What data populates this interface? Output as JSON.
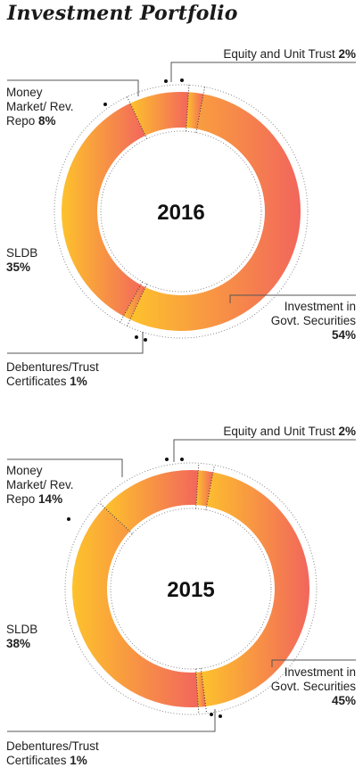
{
  "title": "Investment Portfolio",
  "chart_data": [
    {
      "type": "pie",
      "style": "donut",
      "center_label": "2016",
      "categories": [
        "Equity and Unit Trust",
        "Investment in Govt. Securities",
        "Debentures/Trust Certificates",
        "SLDB",
        "Money Market/ Rev. Repo"
      ],
      "values": [
        2,
        54,
        1,
        35,
        8
      ],
      "value_labels": [
        "2%",
        "54%",
        "1%",
        "35%",
        "8%"
      ],
      "labels": {
        "equity": {
          "line1": "Equity and Unit Trust",
          "line2": "",
          "line3": "",
          "value": "2%"
        },
        "govt": {
          "line1": "Investment in",
          "line2": "Govt. Securities",
          "line3": "",
          "value": "54%"
        },
        "debentures": {
          "line1": "Debentures/Trust",
          "line2": "Certificates",
          "line3": "",
          "value": "1%"
        },
        "sldb": {
          "line1": "SLDB",
          "line2": "",
          "line3": "",
          "value": "35%"
        },
        "money": {
          "line1": "Money",
          "line2": "Market/ Rev.",
          "line3": "Repo",
          "value": "8%"
        }
      },
      "colors": {
        "gradient_left": "#FDC22C",
        "gradient_right": "#F2665C"
      }
    },
    {
      "type": "pie",
      "style": "donut",
      "center_label": "2015",
      "categories": [
        "Equity and Unit Trust",
        "Investment in Govt. Securities",
        "Debentures/Trust Certificates",
        "SLDB",
        "Money Market/ Rev. Repo"
      ],
      "values": [
        2,
        45,
        1,
        38,
        14
      ],
      "value_labels": [
        "2%",
        "45%",
        "1%",
        "38%",
        "14%"
      ],
      "labels": {
        "equity": {
          "line1": "Equity and Unit Trust",
          "line2": "",
          "line3": "",
          "value": "2%"
        },
        "govt": {
          "line1": "Investment in",
          "line2": "Govt. Securities",
          "line3": "",
          "value": "45%"
        },
        "debentures": {
          "line1": "Debentures/Trust",
          "line2": "Certificates",
          "line3": "",
          "value": "1%"
        },
        "sldb": {
          "line1": "SLDB",
          "line2": "",
          "line3": "",
          "value": "38%"
        },
        "money": {
          "line1": "Money",
          "line2": "Market/ Rev.",
          "line3": "Repo",
          "value": "14%"
        }
      },
      "colors": {
        "gradient_left": "#FDC22C",
        "gradient_right": "#F2665C"
      }
    }
  ]
}
